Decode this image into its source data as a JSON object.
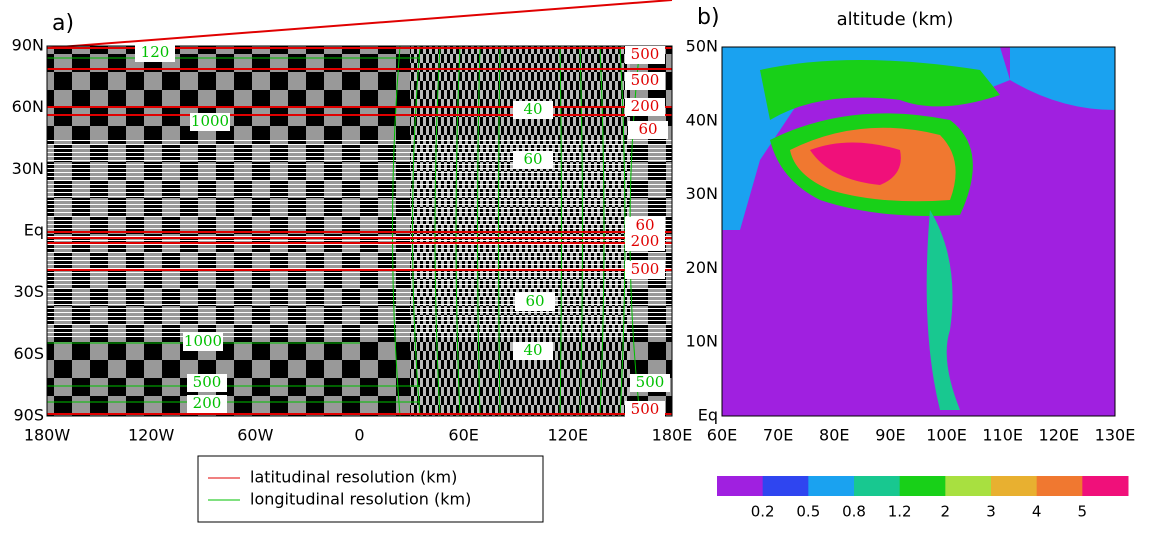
{
  "panel_a": {
    "label": "a)",
    "yticks": [
      "90N",
      "60N",
      "30N",
      "Eq",
      "30S",
      "60S",
      "90S"
    ],
    "xticks": [
      "180W",
      "120W",
      "60W",
      "0",
      "60E",
      "120E",
      "180E"
    ],
    "contour_labels": [
      "120",
      "500",
      "500",
      "200",
      "40",
      "1000",
      "60",
      "60",
      "60",
      "200",
      "500",
      "60",
      "1000",
      "40",
      "500",
      "500",
      "200",
      "500"
    ],
    "legend": [
      {
        "name": "latitudinal resolution (km)",
        "color": "#e00000"
      },
      {
        "name": "longitudinal resolution (km)",
        "color": "#00c000"
      }
    ]
  },
  "panel_b": {
    "label": "b)",
    "title": "altitude (km)",
    "yticks": [
      "50N",
      "40N",
      "30N",
      "20N",
      "10N",
      "Eq"
    ],
    "xticks": [
      "60E",
      "70E",
      "80E",
      "90E",
      "100E",
      "110E",
      "120E",
      "130E"
    ],
    "colorbar": {
      "colors": [
        "#a020e0",
        "#2f45f0",
        "#1aa2f0",
        "#18c890",
        "#18d018",
        "#a8e040",
        "#e8b030",
        "#f07830",
        "#f0107a"
      ],
      "labels": [
        "0.2",
        "0.5",
        "0.8",
        "1.2",
        "2",
        "3",
        "4",
        "5"
      ]
    }
  }
}
